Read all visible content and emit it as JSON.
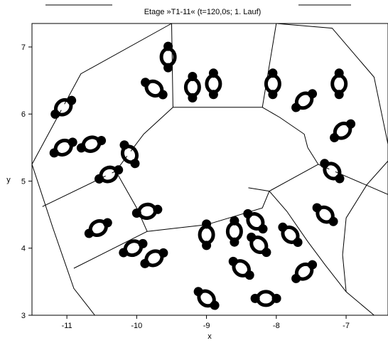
{
  "chart_data": {
    "type": "scatter",
    "title": "Etage »T1-11« (t=120,0s; 1. Lauf)",
    "xlabel": "x",
    "ylabel": "y",
    "xlim": [
      -11.5,
      -6.4
    ],
    "ylim": [
      3.0,
      7.35
    ],
    "xticks": [
      -11,
      -10,
      -9,
      -8,
      -7
    ],
    "yticks": [
      3,
      4,
      5,
      6,
      7
    ],
    "xtick_labels": [
      "-11",
      "-10",
      "-9",
      "-8",
      "-7"
    ],
    "ytick_labels": [
      "3",
      "4",
      "5",
      "6",
      "7"
    ],
    "grid": false,
    "walls": [
      [
        [
          -11.5,
          5.25
        ],
        [
          -10.8,
          6.6
        ],
        [
          -9.5,
          7.35
        ]
      ],
      [
        [
          -9.5,
          7.35
        ],
        [
          -9.48,
          6.1
        ],
        [
          -8.2,
          6.1
        ],
        [
          -8.0,
          7.35
        ]
      ],
      [
        [
          -8.0,
          7.35
        ],
        [
          -7.2,
          7.28
        ],
        [
          -6.6,
          6.55
        ],
        [
          -6.4,
          5.55
        ]
      ],
      [
        [
          -9.48,
          6.1
        ],
        [
          -9.9,
          5.7
        ],
        [
          -10.3,
          5.15
        ]
      ],
      [
        [
          -8.2,
          6.1
        ],
        [
          -7.95,
          5.95
        ],
        [
          -7.6,
          5.7
        ],
        [
          -7.55,
          5.5
        ]
      ],
      [
        [
          -10.3,
          5.15
        ],
        [
          -10.0,
          4.6
        ],
        [
          -9.85,
          4.25
        ]
      ],
      [
        [
          -9.85,
          4.25
        ],
        [
          -9.0,
          4.35
        ],
        [
          -8.2,
          4.6
        ],
        [
          -8.1,
          4.85
        ]
      ],
      [
        [
          -8.1,
          4.85
        ],
        [
          -8.4,
          4.9
        ]
      ],
      [
        [
          -7.55,
          5.5
        ],
        [
          -7.4,
          5.25
        ],
        [
          -8.1,
          4.85
        ]
      ],
      [
        [
          -11.5,
          5.25
        ],
        [
          -11.2,
          4.3
        ],
        [
          -10.9,
          3.4
        ],
        [
          -10.6,
          3.0
        ]
      ],
      [
        [
          -11.35,
          4.62
        ],
        [
          -10.3,
          5.15
        ]
      ],
      [
        [
          -10.9,
          3.7
        ],
        [
          -9.85,
          4.25
        ]
      ],
      [
        [
          -7.4,
          5.25
        ],
        [
          -6.4,
          4.8
        ]
      ],
      [
        [
          -8.1,
          4.85
        ],
        [
          -7.85,
          4.55
        ],
        [
          -7.55,
          4.1
        ],
        [
          -7.3,
          3.75
        ],
        [
          -7.0,
          3.35
        ],
        [
          -6.6,
          3.0
        ]
      ],
      [
        [
          -6.4,
          5.3
        ],
        [
          -6.7,
          4.95
        ],
        [
          -7.0,
          4.45
        ],
        [
          -7.05,
          3.9
        ],
        [
          -7.0,
          3.35
        ]
      ]
    ],
    "series": [
      {
        "marker": "ring-dumbbell",
        "points": [
          {
            "x": -9.55,
            "y": 6.85,
            "angle": 90
          },
          {
            "x": -9.75,
            "y": 6.38,
            "angle": -35
          },
          {
            "x": -9.2,
            "y": 6.4,
            "angle": 90
          },
          {
            "x": -8.9,
            "y": 6.45,
            "angle": 90
          },
          {
            "x": -8.05,
            "y": 6.45,
            "angle": 90
          },
          {
            "x": -7.6,
            "y": 6.2,
            "angle": 40
          },
          {
            "x": -7.1,
            "y": 6.45,
            "angle": 90
          },
          {
            "x": -7.05,
            "y": 5.75,
            "angle": 40
          },
          {
            "x": -11.05,
            "y": 6.1,
            "angle": 40
          },
          {
            "x": -11.05,
            "y": 5.5,
            "angle": 30
          },
          {
            "x": -10.65,
            "y": 5.55,
            "angle": 20
          },
          {
            "x": -10.4,
            "y": 5.1,
            "angle": 25
          },
          {
            "x": -10.1,
            "y": 5.4,
            "angle": -60
          },
          {
            "x": -10.55,
            "y": 4.3,
            "angle": 30
          },
          {
            "x": -10.05,
            "y": 4.0,
            "angle": 25
          },
          {
            "x": -9.85,
            "y": 4.55,
            "angle": 10
          },
          {
            "x": -9.75,
            "y": 3.85,
            "angle": 30
          },
          {
            "x": -9.0,
            "y": 4.2,
            "angle": 90
          },
          {
            "x": -8.6,
            "y": 4.25,
            "angle": 90
          },
          {
            "x": -8.3,
            "y": 4.4,
            "angle": -45
          },
          {
            "x": -8.25,
            "y": 4.05,
            "angle": -45
          },
          {
            "x": -7.8,
            "y": 4.2,
            "angle": -45
          },
          {
            "x": -7.2,
            "y": 5.15,
            "angle": -45
          },
          {
            "x": -7.3,
            "y": 4.5,
            "angle": -40
          },
          {
            "x": -7.6,
            "y": 3.65,
            "angle": 40
          },
          {
            "x": -8.5,
            "y": 3.7,
            "angle": -40
          },
          {
            "x": -9.0,
            "y": 3.25,
            "angle": -40
          },
          {
            "x": -8.15,
            "y": 3.25,
            "angle": 0
          }
        ]
      }
    ]
  }
}
